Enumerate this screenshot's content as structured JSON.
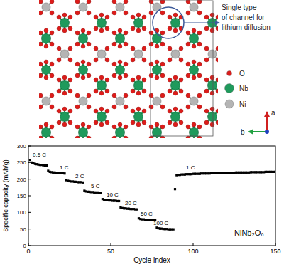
{
  "structure": {
    "annotation": [
      "Single type",
      "of channel for",
      "lithium diffusion"
    ],
    "legend": [
      {
        "label": "O",
        "color": "#dd1c1a"
      },
      {
        "label": "Nb",
        "color": "#1f9a5c"
      },
      {
        "label": "Ni",
        "color": "#b4b4b4"
      }
    ],
    "axes": [
      "a",
      "b"
    ]
  },
  "chart_data": {
    "type": "scatter",
    "xlabel": "Cycle index",
    "ylabel": "Specific capacity (mAh/g)",
    "xlim": [
      0,
      150
    ],
    "ylim": [
      0,
      300
    ],
    "xticks": [
      0,
      50,
      100,
      150
    ],
    "yticks": [
      0,
      50,
      100,
      150,
      200,
      250,
      300
    ],
    "grid": false,
    "color": "#000000",
    "marker": "square",
    "annotations": [
      "0.5 C",
      "1 C",
      "2 C",
      "5 C",
      "10 C",
      "20 C",
      "50 C",
      "100 C",
      "1 C",
      "NiNb₂O₆"
    ],
    "x": [
      1,
      2,
      3,
      4,
      5,
      6,
      7,
      8,
      9,
      10,
      11,
      12,
      13,
      14,
      15,
      16,
      17,
      18,
      19,
      20,
      21,
      22,
      23,
      24,
      25,
      26,
      27,
      28,
      29,
      30,
      31,
      32,
      33,
      34,
      35,
      36,
      37,
      38,
      39,
      40,
      41,
      42,
      43,
      44,
      45,
      46,
      47,
      48,
      49,
      50,
      51,
      52,
      53,
      54,
      55,
      56,
      57,
      58,
      59,
      60,
      61,
      62,
      63,
      64,
      65,
      66,
      67,
      68,
      69,
      70,
      71,
      72,
      73,
      74,
      75,
      76,
      77,
      78,
      79,
      80,
      81,
      82,
      83,
      84,
      85,
      86,
      87,
      88,
      89,
      90,
      91,
      92,
      93,
      94,
      95,
      96,
      97,
      98,
      99,
      100,
      101,
      102,
      103,
      104,
      105,
      106,
      107,
      108,
      109,
      110,
      111,
      112,
      113,
      114,
      115,
      116,
      117,
      118,
      119,
      120,
      121,
      122,
      123,
      124,
      125,
      126,
      127,
      128,
      129,
      130,
      131,
      132,
      133,
      134,
      135,
      136,
      137,
      138,
      139,
      140,
      141,
      142,
      143,
      144,
      145,
      146,
      147,
      148,
      149,
      150
    ],
    "values": [
      258,
      250,
      248,
      246,
      245,
      244,
      243,
      243,
      242,
      241,
      241,
      225,
      222,
      221,
      220,
      220,
      219,
      219,
      218,
      218,
      218,
      217,
      197,
      195,
      194,
      193,
      193,
      192,
      192,
      191,
      191,
      191,
      190,
      165,
      163,
      162,
      162,
      161,
      161,
      160,
      160,
      160,
      159,
      159,
      140,
      138,
      137,
      137,
      136,
      136,
      135,
      135,
      135,
      134,
      134,
      115,
      113,
      112,
      112,
      111,
      111,
      110,
      110,
      110,
      109,
      109,
      82,
      80,
      79,
      79,
      78,
      78,
      78,
      77,
      77,
      77,
      76,
      54,
      52,
      51,
      51,
      50,
      50,
      50,
      49,
      49,
      49,
      49,
      170,
      212,
      213,
      213,
      214,
      214,
      214,
      215,
      215,
      215,
      215,
      216,
      216,
      216,
      216,
      216,
      217,
      217,
      217,
      217,
      217,
      217,
      218,
      218,
      218,
      218,
      218,
      218,
      218,
      219,
      219,
      219,
      219,
      219,
      219,
      219,
      219,
      220,
      220,
      220,
      220,
      220,
      220,
      220,
      220,
      220,
      221,
      221,
      221,
      221,
      221,
      221,
      221,
      221,
      221,
      222,
      222,
      222,
      222,
      222,
      222,
      222
    ]
  }
}
